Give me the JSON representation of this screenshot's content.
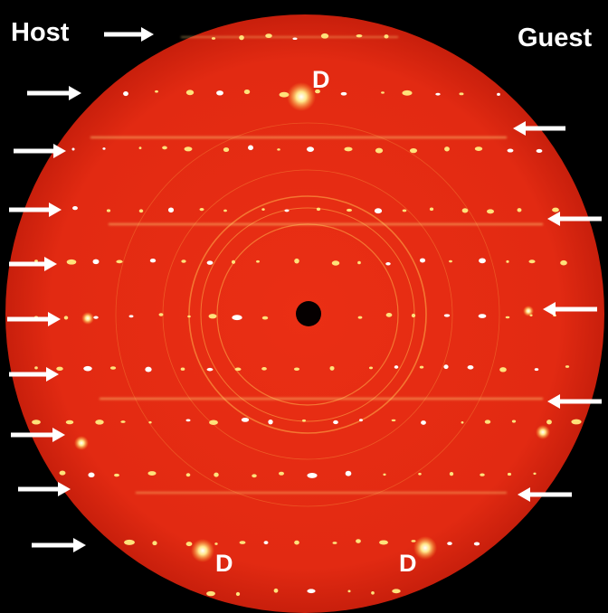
{
  "labels": {
    "host": "Host",
    "guest": "Guest",
    "reflection_top": "D",
    "reflection_bottom_left": "D",
    "reflection_bottom_right": "D"
  },
  "colors": {
    "background": "#000000",
    "detector_field": "#e42a12",
    "reflection": "#ffe68a",
    "arrow": "#ffffff"
  }
}
